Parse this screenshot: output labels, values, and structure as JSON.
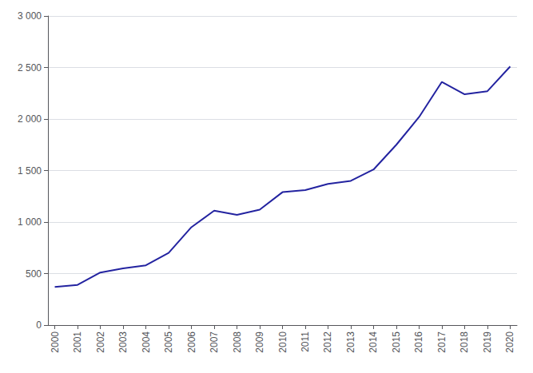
{
  "chart_data": {
    "type": "line",
    "x": [
      2000,
      2001,
      2002,
      2003,
      2004,
      2005,
      2006,
      2007,
      2008,
      2009,
      2010,
      2011,
      2012,
      2013,
      2014,
      2015,
      2016,
      2017,
      2018,
      2019,
      2020
    ],
    "values": [
      370,
      390,
      510,
      550,
      580,
      700,
      950,
      1110,
      1070,
      1120,
      1290,
      1310,
      1370,
      1400,
      1510,
      1750,
      2020,
      2360,
      2240,
      2270,
      2510
    ],
    "color": "#2323a0",
    "xlim": [
      1999.7,
      2020.3
    ],
    "xticks": [
      2000,
      2001,
      2002,
      2003,
      2004,
      2005,
      2006,
      2007,
      2008,
      2009,
      2010,
      2011,
      2012,
      2013,
      2014,
      2015,
      2016,
      2017,
      2018,
      2019,
      2020
    ],
    "ylim": [
      0,
      3000
    ],
    "yticks": [
      0,
      500,
      {
        "value": 1000,
        "label": "1 000"
      },
      {
        "value": 1500,
        "label": "1 500"
      },
      {
        "value": 2000,
        "label": "2 000"
      },
      {
        "value": 2500,
        "label": "2 500"
      },
      {
        "value": 3000,
        "label": "3 000"
      }
    ],
    "grid": true
  }
}
